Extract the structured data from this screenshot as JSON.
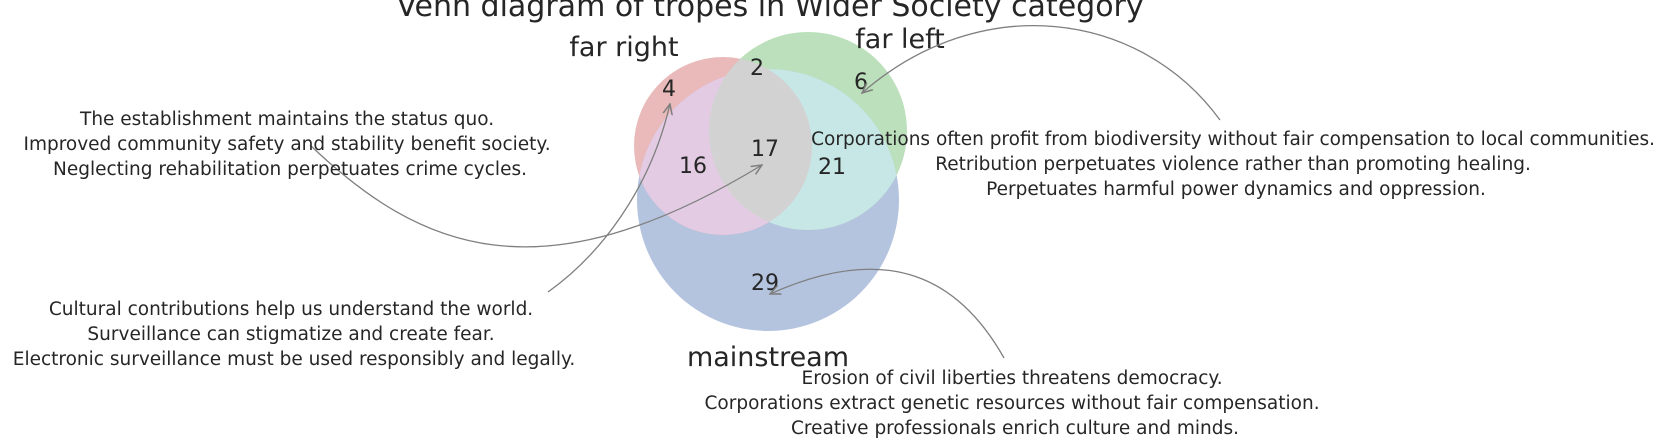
{
  "title": "Venn diagram of tropes in Wider Society category",
  "sets": {
    "far_right": {
      "label": "far right",
      "color": "#dd8f8f"
    },
    "far_left": {
      "label": "far left",
      "color": "#8fcc8f"
    },
    "mainstream": {
      "label": "mainstream",
      "color": "#91a8d0"
    }
  },
  "regions": {
    "far_right_only": "4",
    "far_right_and_far_left": "2",
    "far_left_only": "6",
    "far_right_and_mainstream": "16",
    "all_three": "17",
    "far_left_and_mainstream": "21",
    "mainstream_only": "29"
  },
  "annotations": {
    "far_right_and_mainstream": [
      "The establishment maintains the status quo.",
      "Improved community safety and stability benefit society.",
      "Neglecting rehabilitation perpetuates crime cycles."
    ],
    "far_right_only": [
      "Cultural contributions help us understand the world.",
      "Surveillance can stigmatize and create fear.",
      "Electronic surveillance must be used responsibly and legally."
    ],
    "far_left_only": [
      "Corporations often profit from biodiversity without fair compensation to local communities.",
      "Retribution perpetuates violence rather than promoting healing.",
      "Perpetuates harmful power dynamics and oppression."
    ],
    "mainstream_only": [
      "Erosion of civil liberties threatens democracy.",
      "Corporations extract genetic resources without fair compensation.",
      "Creative professionals enrich culture and minds."
    ]
  }
}
